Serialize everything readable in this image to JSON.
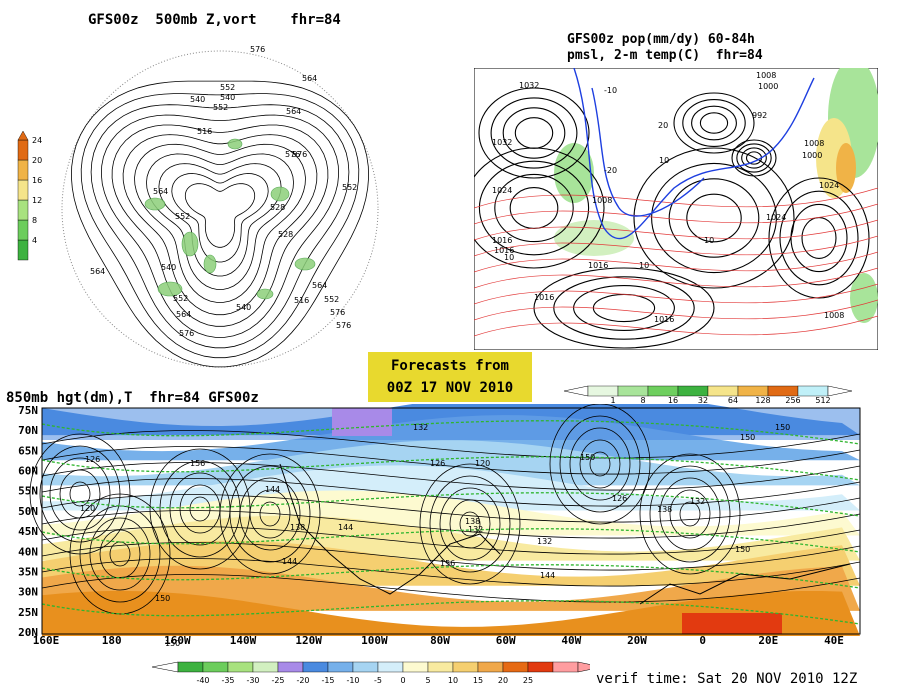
{
  "panel_500mb": {
    "title": "GFS00z  500mb Z,vort    fhr=84",
    "contour_labels": [
      "576",
      "564",
      "552",
      "540",
      "516",
      "576",
      "564",
      "552",
      "528",
      "540",
      "552",
      "564",
      "576",
      "564",
      "552",
      "540",
      "516",
      "576",
      "564",
      "552",
      "528",
      "540",
      "552",
      "564",
      "576",
      "576"
    ],
    "colorbar": {
      "ticks": [
        "24",
        "20",
        "16",
        "12",
        "8",
        "4"
      ],
      "colors": [
        "#3db240",
        "#6ccd5c",
        "#a8e27f",
        "#f5e48a",
        "#f0b347",
        "#e06a14"
      ]
    }
  },
  "panel_pop": {
    "title_line1": "GFS00z pop(mm/dy) 60-84h",
    "title_line2": "pmsl, 2-m temp(C)  fhr=84",
    "contour_labels": [
      "1032",
      "1008",
      "1000",
      "992",
      "1000",
      "1008",
      "1024",
      "1032",
      "1016",
      "1024",
      "1008",
      "1016",
      "1024",
      "1016",
      "1016",
      "1016",
      "1008",
      "10",
      "10",
      "-10",
      "-20",
      "20",
      "10",
      "10"
    ],
    "colorbar": {
      "ticks": [
        "1",
        "8",
        "16",
        "32",
        "64",
        "128",
        "256",
        "512"
      ],
      "colors": [
        "#e6f7e0",
        "#a8e49a",
        "#6ecf5e",
        "#3db240",
        "#f5e48a",
        "#f0b347",
        "#e06a14",
        "#c0f0f8"
      ]
    }
  },
  "forecast_box": {
    "line1": "Forecasts from",
    "line2": "00Z 17 NOV 2010"
  },
  "panel_850mb": {
    "title": "850mb hgt(dm),T  fhr=84 GFS00z",
    "lat_labels": [
      "75N",
      "70N",
      "65N",
      "60N",
      "55N",
      "50N",
      "45N",
      "40N",
      "35N",
      "30N",
      "25N",
      "20N"
    ],
    "lon_labels": [
      "160E",
      "180",
      "160W",
      "140W",
      "120W",
      "100W",
      "80W",
      "60W",
      "40W",
      "20W",
      "0",
      "20E",
      "40E"
    ],
    "contour_labels": [
      "126",
      "120",
      "150",
      "156",
      "144",
      "138",
      "132",
      "126",
      "120",
      "150",
      "144",
      "126",
      "138",
      "150",
      "132",
      "144",
      "156",
      "150",
      "138",
      "132",
      "144",
      "150",
      "132",
      "150"
    ],
    "colorbar": {
      "ticks": [
        "-40",
        "-35",
        "-30",
        "-25",
        "-20",
        "-15",
        "-10",
        "-5",
        "0",
        "5",
        "10",
        "15",
        "20",
        "25"
      ],
      "colors": [
        "#3db240",
        "#6ccd5c",
        "#a8e27f",
        "#d2f0c0",
        "#a88ae8",
        "#4a8ae0",
        "#76b0ea",
        "#a6d4f2",
        "#d4eefa",
        "#fdfad0",
        "#f8eaa0",
        "#f5cf70",
        "#f0a84a",
        "#e66a14",
        "#e23a10",
        "#ff9da0"
      ]
    }
  },
  "verif_time": "verif time: Sat 20 NOV 2010 12Z"
}
